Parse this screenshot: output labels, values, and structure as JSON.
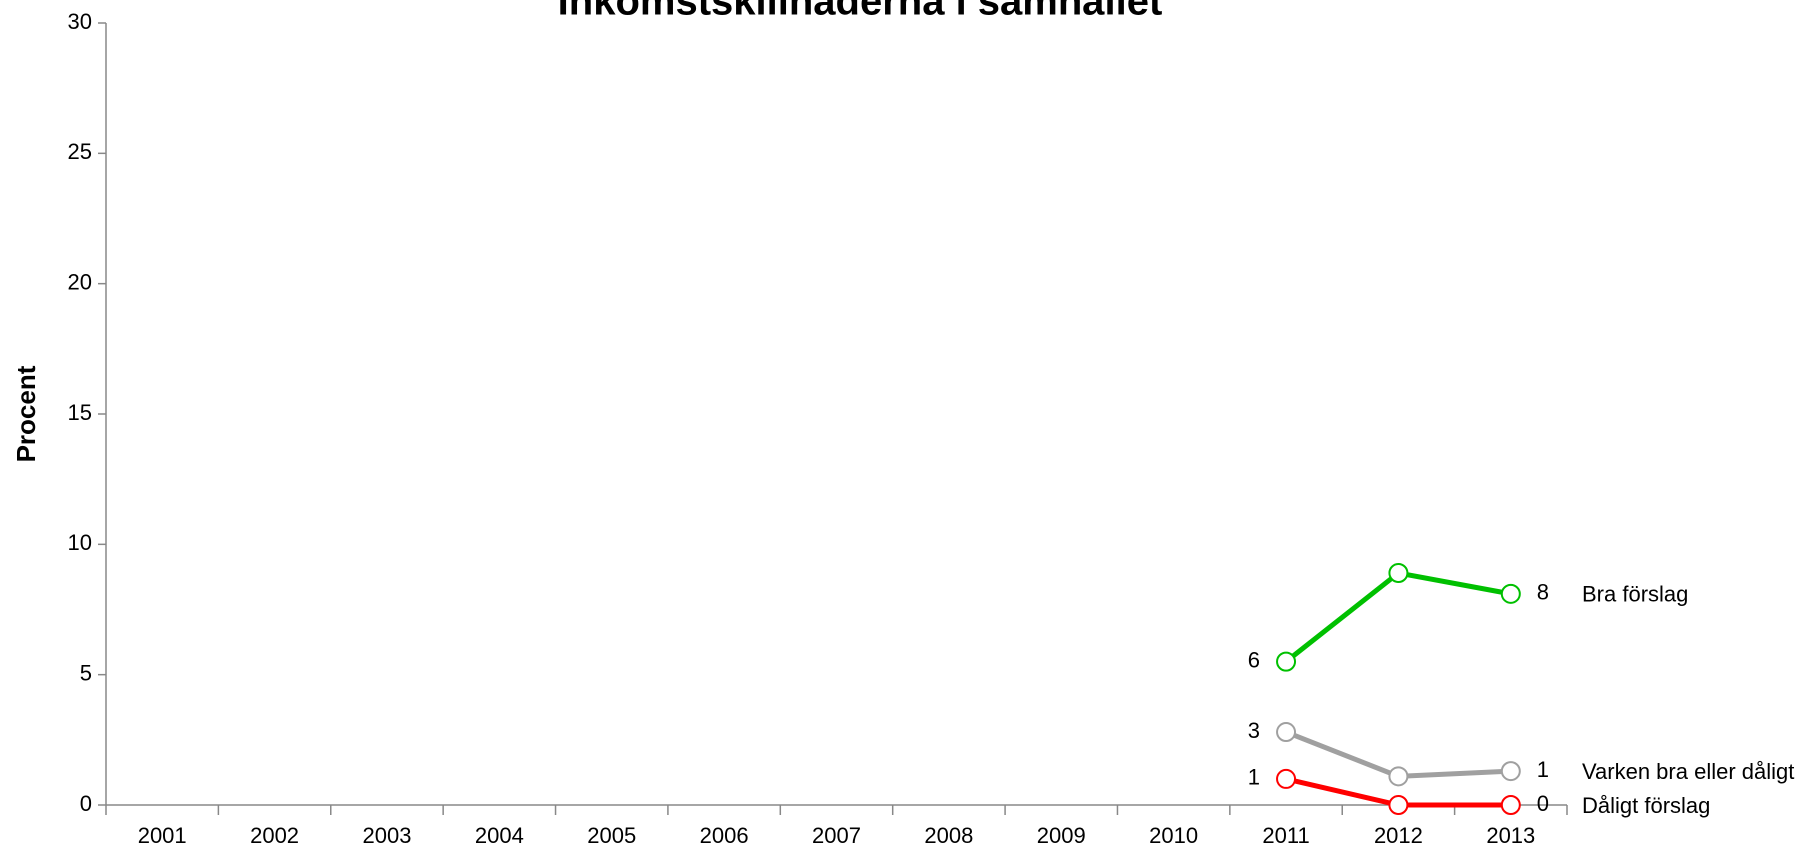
{
  "chart_data": {
    "type": "line",
    "title": "Inkomstskillnaderna i samhället",
    "y_label": "Procent",
    "categories": [
      "2001",
      "2002",
      "2003",
      "2004",
      "2005",
      "2006",
      "2007",
      "2008",
      "2009",
      "2010",
      "2011",
      "2012",
      "2013"
    ],
    "series": [
      {
        "name": "Bra förslag",
        "color": "#00c000",
        "values": [
          null,
          null,
          null,
          null,
          null,
          null,
          null,
          null,
          null,
          null,
          5.5,
          8.9,
          8.1
        ],
        "value_labels": [
          null,
          null,
          null,
          null,
          null,
          null,
          null,
          null,
          null,
          null,
          "6",
          null,
          "8"
        ]
      },
      {
        "name": "Varken bra eller dåligt",
        "color": "#a0a0a0",
        "values": [
          null,
          null,
          null,
          null,
          null,
          null,
          null,
          null,
          null,
          null,
          2.8,
          1.1,
          1.3
        ],
        "value_labels": [
          null,
          null,
          null,
          null,
          null,
          null,
          null,
          null,
          null,
          null,
          "3",
          null,
          "1"
        ]
      },
      {
        "name": "Dåligt förslag",
        "color": "#ff0000",
        "values": [
          null,
          null,
          null,
          null,
          null,
          null,
          null,
          null,
          null,
          null,
          1.0,
          0,
          0
        ],
        "value_labels": [
          null,
          null,
          null,
          null,
          null,
          null,
          null,
          null,
          null,
          null,
          "1",
          null,
          "0"
        ]
      }
    ],
    "ylim": [
      0,
      30
    ],
    "yticks": [
      0,
      5,
      10,
      15,
      20,
      25,
      30
    ],
    "grid": false
  }
}
